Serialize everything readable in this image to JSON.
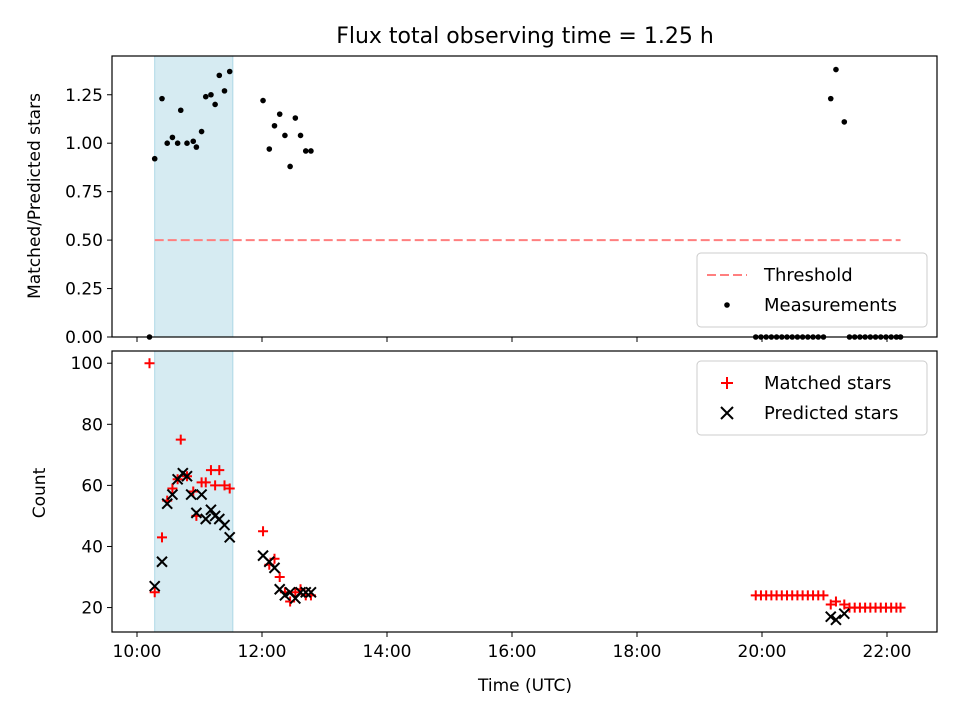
{
  "chart_data": [
    {
      "type": "scatter",
      "title": "Flux total observing time = 1.25 h",
      "xlabel": "",
      "ylabel": "Matched/Predicted stars",
      "xlim": [
        "09:36",
        "22:48"
      ],
      "ylim": [
        0,
        1.45
      ],
      "yticks": [
        "0.00",
        "0.25",
        "0.50",
        "0.75",
        "1.00",
        "1.25"
      ],
      "shaded_interval": [
        "10:17",
        "11:32"
      ],
      "legend_position": "lower right",
      "threshold": {
        "name": "Threshold",
        "value": 0.5,
        "x_range": [
          "10:17",
          "22:13"
        ],
        "color": "#ff7f7f"
      },
      "series": [
        {
          "name": "Measurements",
          "color": "#000000",
          "points": [
            [
              "10:12",
              0.0
            ],
            [
              "10:17",
              0.92
            ],
            [
              "10:24",
              1.23
            ],
            [
              "10:29",
              1.0
            ],
            [
              "10:34",
              1.03
            ],
            [
              "10:39",
              1.0
            ],
            [
              "10:42",
              1.17
            ],
            [
              "10:48",
              1.0
            ],
            [
              "10:54",
              1.01
            ],
            [
              "10:57",
              0.98
            ],
            [
              "11:02",
              1.06
            ],
            [
              "11:06",
              1.24
            ],
            [
              "11:11",
              1.25
            ],
            [
              "11:15",
              1.2
            ],
            [
              "11:19",
              1.35
            ],
            [
              "11:24",
              1.27
            ],
            [
              "11:29",
              1.37
            ],
            [
              "12:01",
              1.22
            ],
            [
              "12:07",
              0.97
            ],
            [
              "12:12",
              1.09
            ],
            [
              "12:17",
              1.15
            ],
            [
              "12:22",
              1.04
            ],
            [
              "12:27",
              0.88
            ],
            [
              "12:32",
              1.13
            ],
            [
              "12:37",
              1.04
            ],
            [
              "12:42",
              0.96
            ],
            [
              "12:47",
              0.96
            ],
            [
              "21:06",
              1.23
            ],
            [
              "21:11",
              1.38
            ],
            [
              "21:19",
              1.11
            ],
            [
              "19:54",
              0.0
            ],
            [
              "19:59",
              0.0
            ],
            [
              "20:04",
              0.0
            ],
            [
              "20:09",
              0.0
            ],
            [
              "20:14",
              0.0
            ],
            [
              "20:19",
              0.0
            ],
            [
              "20:24",
              0.0
            ],
            [
              "20:29",
              0.0
            ],
            [
              "20:34",
              0.0
            ],
            [
              "20:39",
              0.0
            ],
            [
              "20:44",
              0.0
            ],
            [
              "20:49",
              0.0
            ],
            [
              "20:54",
              0.0
            ],
            [
              "20:59",
              0.0
            ],
            [
              "21:24",
              0.0
            ],
            [
              "21:29",
              0.0
            ],
            [
              "21:34",
              0.0
            ],
            [
              "21:39",
              0.0
            ],
            [
              "21:44",
              0.0
            ],
            [
              "21:49",
              0.0
            ],
            [
              "21:54",
              0.0
            ],
            [
              "21:59",
              0.0
            ],
            [
              "22:04",
              0.0
            ],
            [
              "22:09",
              0.0
            ],
            [
              "22:13",
              0.0
            ]
          ]
        }
      ]
    },
    {
      "type": "scatter",
      "title": "",
      "xlabel": "Time (UTC)",
      "ylabel": "Count",
      "xlim": [
        "09:36",
        "22:48"
      ],
      "ylim": [
        12,
        104
      ],
      "xticks": [
        "10:00",
        "12:00",
        "14:00",
        "16:00",
        "18:00",
        "20:00",
        "22:00"
      ],
      "yticks": [
        "20",
        "40",
        "60",
        "80",
        "100"
      ],
      "shaded_interval": [
        "10:17",
        "11:32"
      ],
      "legend_position": "upper right",
      "series": [
        {
          "name": "Matched stars",
          "marker": "plus",
          "color": "#ff0000",
          "points": [
            [
              "10:12",
              100
            ],
            [
              "10:17",
              25
            ],
            [
              "10:24",
              43
            ],
            [
              "10:29",
              55
            ],
            [
              "10:34",
              59
            ],
            [
              "10:39",
              62
            ],
            [
              "10:42",
              75
            ],
            [
              "10:48",
              63
            ],
            [
              "10:54",
              58
            ],
            [
              "10:57",
              50
            ],
            [
              "11:02",
              61
            ],
            [
              "11:06",
              61
            ],
            [
              "11:11",
              65
            ],
            [
              "11:15",
              60
            ],
            [
              "11:19",
              65
            ],
            [
              "11:24",
              60
            ],
            [
              "11:29",
              59
            ],
            [
              "12:01",
              45
            ],
            [
              "12:07",
              34
            ],
            [
              "12:12",
              36
            ],
            [
              "12:17",
              30
            ],
            [
              "12:22",
              25
            ],
            [
              "12:27",
              22
            ],
            [
              "12:32",
              25
            ],
            [
              "12:37",
              26
            ],
            [
              "12:42",
              24
            ],
            [
              "12:47",
              24
            ],
            [
              "19:54",
              24
            ],
            [
              "19:59",
              24
            ],
            [
              "20:04",
              24
            ],
            [
              "20:09",
              24
            ],
            [
              "20:14",
              24
            ],
            [
              "20:19",
              24
            ],
            [
              "20:24",
              24
            ],
            [
              "20:29",
              24
            ],
            [
              "20:34",
              24
            ],
            [
              "20:39",
              24
            ],
            [
              "20:44",
              24
            ],
            [
              "20:49",
              24
            ],
            [
              "20:54",
              24
            ],
            [
              "20:59",
              24
            ],
            [
              "21:06",
              21
            ],
            [
              "21:11",
              22
            ],
            [
              "21:19",
              21
            ],
            [
              "21:24",
              20
            ],
            [
              "21:29",
              20
            ],
            [
              "21:34",
              20
            ],
            [
              "21:39",
              20
            ],
            [
              "21:44",
              20
            ],
            [
              "21:49",
              20
            ],
            [
              "21:54",
              20
            ],
            [
              "21:59",
              20
            ],
            [
              "22:04",
              20
            ],
            [
              "22:09",
              20
            ],
            [
              "22:13",
              20
            ]
          ]
        },
        {
          "name": "Predicted stars",
          "marker": "x",
          "color": "#000000",
          "points": [
            [
              "10:17",
              27
            ],
            [
              "10:24",
              35
            ],
            [
              "10:29",
              54
            ],
            [
              "10:34",
              57
            ],
            [
              "10:39",
              62
            ],
            [
              "10:44",
              64
            ],
            [
              "10:48",
              63
            ],
            [
              "10:52",
              57
            ],
            [
              "10:57",
              51
            ],
            [
              "11:02",
              57
            ],
            [
              "11:06",
              49
            ],
            [
              "11:11",
              52
            ],
            [
              "11:15",
              50
            ],
            [
              "11:19",
              49
            ],
            [
              "11:24",
              47
            ],
            [
              "11:29",
              43
            ],
            [
              "12:01",
              37
            ],
            [
              "12:07",
              35
            ],
            [
              "12:12",
              33
            ],
            [
              "12:17",
              26
            ],
            [
              "12:22",
              24
            ],
            [
              "12:27",
              25
            ],
            [
              "12:32",
              23
            ],
            [
              "12:37",
              25
            ],
            [
              "12:42",
              25
            ],
            [
              "12:47",
              25
            ],
            [
              "21:06",
              17
            ],
            [
              "21:11",
              16
            ],
            [
              "21:19",
              18
            ]
          ]
        }
      ]
    }
  ]
}
